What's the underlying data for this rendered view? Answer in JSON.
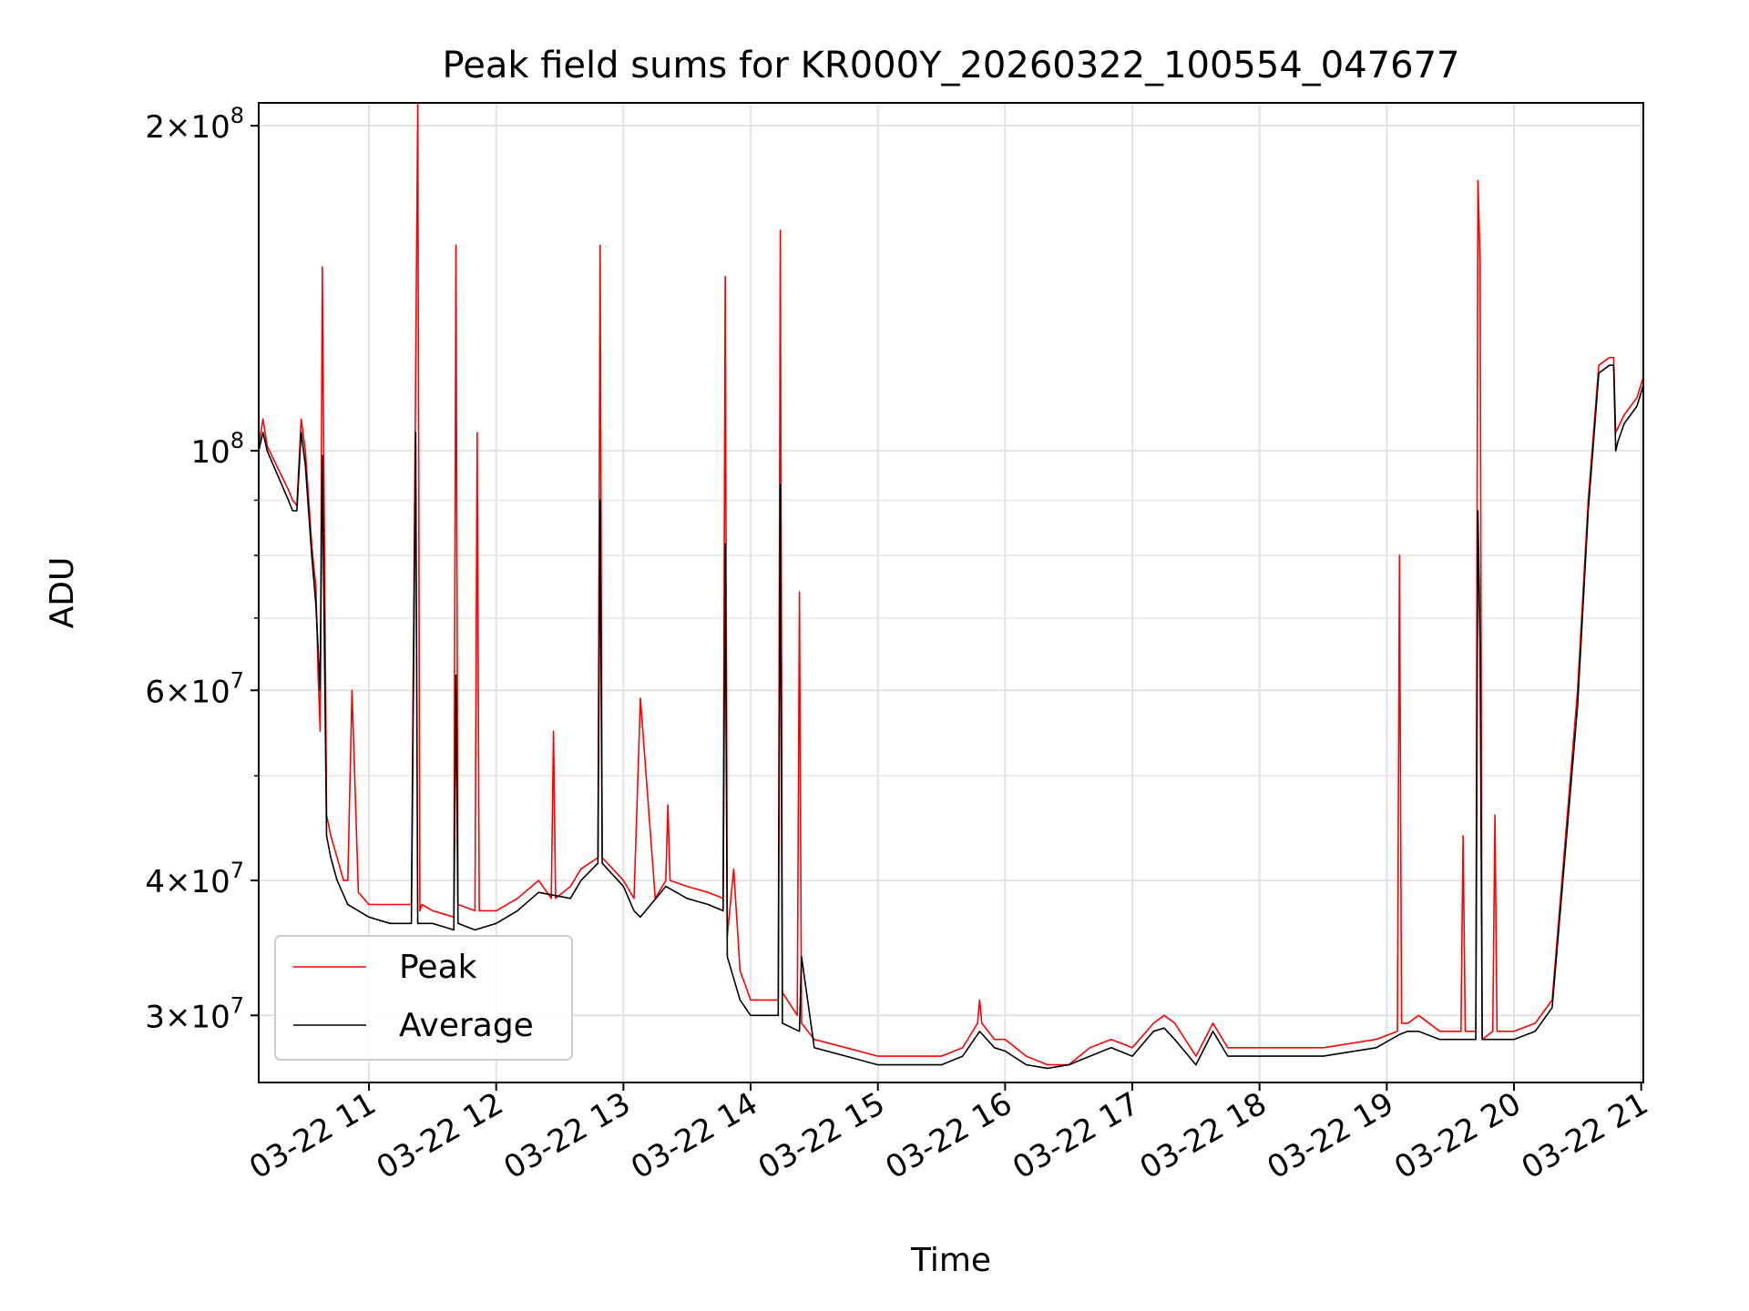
{
  "chart_data": {
    "type": "line",
    "title": "Peak field sums for KR000Y_20260322_100554_047677",
    "xlabel": "Time",
    "ylabel": "ADU",
    "y_scale": "log",
    "ylim": [
      26000000,
      210000000
    ],
    "xlim": [
      "03-22 10:08",
      "03-22 21:01"
    ],
    "grid": true,
    "legend": {
      "position": "lower-left",
      "entries": [
        "Peak",
        "Average"
      ]
    },
    "x_ticks": [
      {
        "value": "03-22 11:00",
        "label": "03-22 11"
      },
      {
        "value": "03-22 12:00",
        "label": "03-22 12"
      },
      {
        "value": "03-22 13:00",
        "label": "03-22 13"
      },
      {
        "value": "03-22 14:00",
        "label": "03-22 14"
      },
      {
        "value": "03-22 15:00",
        "label": "03-22 15"
      },
      {
        "value": "03-22 16:00",
        "label": "03-22 16"
      },
      {
        "value": "03-22 17:00",
        "label": "03-22 17"
      },
      {
        "value": "03-22 18:00",
        "label": "03-22 18"
      },
      {
        "value": "03-22 19:00",
        "label": "03-22 19"
      },
      {
        "value": "03-22 20:00",
        "label": "03-22 20"
      },
      {
        "value": "03-22 21:00",
        "label": "03-22 21"
      }
    ],
    "y_ticks": [
      {
        "value": 30000000,
        "base": "3",
        "exp": "7"
      },
      {
        "value": 40000000,
        "base": "4",
        "exp": "7"
      },
      {
        "value": 60000000,
        "base": "6",
        "exp": "7"
      },
      {
        "value": 100000000,
        "base": "",
        "exp": "8"
      },
      {
        "value": 200000000,
        "base": "2",
        "exp": "8"
      }
    ],
    "y_minor_ticks": [
      50000000,
      70000000,
      80000000,
      90000000
    ],
    "series": [
      {
        "name": "Peak",
        "color": "#ff0000",
        "x": [
          "03-22 10:08",
          "03-22 10:10",
          "03-22 10:12",
          "03-22 10:22",
          "03-22 10:24",
          "03-22 10:26",
          "03-22 10:28",
          "03-22 10:30",
          "03-22 10:33",
          "03-22 10:34",
          "03-22 10:35",
          "03-22 10:36",
          "03-22 10:37",
          "03-22 10:38",
          "03-22 10:40",
          "03-22 10:42",
          "03-22 10:45",
          "03-22 10:48",
          "03-22 10:50",
          "03-22 10:52",
          "03-22 10:55",
          "03-22 11:00",
          "03-22 11:06",
          "03-22 11:10",
          "03-22 11:20",
          "03-22 11:22",
          "03-22 11:23",
          "03-22 11:24",
          "03-22 11:25",
          "03-22 11:30",
          "03-22 11:40",
          "03-22 11:41",
          "03-22 11:42",
          "03-22 11:50",
          "03-22 11:51",
          "03-22 11:52",
          "03-22 12:00",
          "03-22 12:10",
          "03-22 12:20",
          "03-22 12:26",
          "03-22 12:27",
          "03-22 12:28",
          "03-22 12:35",
          "03-22 12:40",
          "03-22 12:48",
          "03-22 12:49",
          "03-22 12:50",
          "03-22 13:00",
          "03-22 13:05",
          "03-22 13:08",
          "03-22 13:15",
          "03-22 13:20",
          "03-22 13:21",
          "03-22 13:22",
          "03-22 13:30",
          "03-22 13:40",
          "03-22 13:47",
          "03-22 13:48",
          "03-22 13:49",
          "03-22 13:52",
          "03-22 13:55",
          "03-22 14:00",
          "03-22 14:13",
          "03-22 14:14",
          "03-22 14:15",
          "03-22 14:22",
          "03-22 14:23",
          "03-22 14:24",
          "03-22 14:30",
          "03-22 14:45",
          "03-22 15:00",
          "03-22 15:15",
          "03-22 15:30",
          "03-22 15:40",
          "03-22 15:47",
          "03-22 15:48",
          "03-22 15:49",
          "03-22 15:55",
          "03-22 16:00",
          "03-22 16:10",
          "03-22 16:20",
          "03-22 16:30",
          "03-22 16:40",
          "03-22 16:50",
          "03-22 17:00",
          "03-22 17:10",
          "03-22 17:15",
          "03-22 17:20",
          "03-22 17:30",
          "03-22 17:38",
          "03-22 17:45",
          "03-22 17:50",
          "03-22 18:00",
          "03-22 18:30",
          "03-22 18:55",
          "03-22 19:05",
          "03-22 19:06",
          "03-22 19:07",
          "03-22 19:10",
          "03-22 19:15",
          "03-22 19:25",
          "03-22 19:35",
          "03-22 19:36",
          "03-22 19:37",
          "03-22 19:42",
          "03-22 19:43",
          "03-22 19:44",
          "03-22 19:45",
          "03-22 19:50",
          "03-22 19:51",
          "03-22 19:52",
          "03-22 19:55",
          "03-22 20:00",
          "03-22 20:10",
          "03-22 20:18",
          "03-22 20:30",
          "03-22 20:35",
          "03-22 20:40",
          "03-22 20:45",
          "03-22 20:47",
          "03-22 20:48",
          "03-22 20:49",
          "03-22 20:52",
          "03-22 20:58",
          "03-22 21:01"
        ],
        "y": [
          101000000,
          107000000,
          101000000,
          92000000,
          90000000,
          89000000,
          107000000,
          100000000,
          82000000,
          78000000,
          75000000,
          62000000,
          55000000,
          148000000,
          46000000,
          44000000,
          42000000,
          40000000,
          40000000,
          60000000,
          39000000,
          38000000,
          38000000,
          38000000,
          38000000,
          118000000,
          210000000,
          37500000,
          38000000,
          37500000,
          37000000,
          155000000,
          38000000,
          37500000,
          104000000,
          37500000,
          37500000,
          38500000,
          40000000,
          38500000,
          55000000,
          38500000,
          39500000,
          41000000,
          42000000,
          155000000,
          42000000,
          40000000,
          38500000,
          59000000,
          38500000,
          40000000,
          47000000,
          40000000,
          39500000,
          39000000,
          38500000,
          145000000,
          35500000,
          41000000,
          33000000,
          31000000,
          31000000,
          160000000,
          31500000,
          30000000,
          74000000,
          29500000,
          28500000,
          28000000,
          27500000,
          27500000,
          27500000,
          28000000,
          29500000,
          31000000,
          29500000,
          28500000,
          28500000,
          27500000,
          27000000,
          27000000,
          28000000,
          28500000,
          28000000,
          29500000,
          30000000,
          29500000,
          27500000,
          29500000,
          28000000,
          28000000,
          28000000,
          28000000,
          28500000,
          29000000,
          80000000,
          29500000,
          29500000,
          30000000,
          29000000,
          29000000,
          44000000,
          29000000,
          29000000,
          178000000,
          150000000,
          28500000,
          29000000,
          46000000,
          29000000,
          29000000,
          29000000,
          29500000,
          31000000,
          60000000,
          90000000,
          120000000,
          122000000,
          122000000,
          104000000,
          105000000,
          108000000,
          112000000,
          117000000
        ]
      },
      {
        "name": "Average",
        "color": "#000000",
        "x": [
          "03-22 10:08",
          "03-22 10:10",
          "03-22 10:12",
          "03-22 10:22",
          "03-22 10:24",
          "03-22 10:26",
          "03-22 10:28",
          "03-22 10:30",
          "03-22 10:33",
          "03-22 10:35",
          "03-22 10:37",
          "03-22 10:38",
          "03-22 10:40",
          "03-22 10:42",
          "03-22 10:45",
          "03-22 10:50",
          "03-22 10:55",
          "03-22 11:00",
          "03-22 11:10",
          "03-22 11:20",
          "03-22 11:22",
          "03-22 11:23",
          "03-22 11:24",
          "03-22 11:30",
          "03-22 11:40",
          "03-22 11:41",
          "03-22 11:42",
          "03-22 11:50",
          "03-22 12:00",
          "03-22 12:10",
          "03-22 12:20",
          "03-22 12:35",
          "03-22 12:40",
          "03-22 12:48",
          "03-22 12:49",
          "03-22 12:50",
          "03-22 13:00",
          "03-22 13:05",
          "03-22 13:08",
          "03-22 13:20",
          "03-22 13:30",
          "03-22 13:40",
          "03-22 13:47",
          "03-22 13:48",
          "03-22 13:49",
          "03-22 13:55",
          "03-22 14:00",
          "03-22 14:13",
          "03-22 14:14",
          "03-22 14:15",
          "03-22 14:23",
          "03-22 14:24",
          "03-22 14:30",
          "03-22 14:45",
          "03-22 15:00",
          "03-22 15:15",
          "03-22 15:30",
          "03-22 15:40",
          "03-22 15:48",
          "03-22 15:55",
          "03-22 16:00",
          "03-22 16:10",
          "03-22 16:20",
          "03-22 16:30",
          "03-22 16:40",
          "03-22 16:50",
          "03-22 17:00",
          "03-22 17:10",
          "03-22 17:15",
          "03-22 17:20",
          "03-22 17:30",
          "03-22 17:38",
          "03-22 17:45",
          "03-22 17:50",
          "03-22 18:00",
          "03-22 18:30",
          "03-22 18:55",
          "03-22 19:06",
          "03-22 19:10",
          "03-22 19:15",
          "03-22 19:25",
          "03-22 19:36",
          "03-22 19:42",
          "03-22 19:43",
          "03-22 19:44",
          "03-22 19:45",
          "03-22 19:51",
          "03-22 19:52",
          "03-22 20:00",
          "03-22 20:10",
          "03-22 20:18",
          "03-22 20:30",
          "03-22 20:35",
          "03-22 20:40",
          "03-22 20:45",
          "03-22 20:47",
          "03-22 20:48",
          "03-22 20:49",
          "03-22 20:52",
          "03-22 20:58",
          "03-22 21:01"
        ],
        "y": [
          100000000,
          104000000,
          100000000,
          90000000,
          88000000,
          88000000,
          104000000,
          97000000,
          80000000,
          72000000,
          60000000,
          99000000,
          44000000,
          42000000,
          40000000,
          38000000,
          37500000,
          37000000,
          36500000,
          36500000,
          104000000,
          36500000,
          36500000,
          36500000,
          36000000,
          62000000,
          36500000,
          36000000,
          36500000,
          37500000,
          39000000,
          38500000,
          40000000,
          41500000,
          90000000,
          41500000,
          39500000,
          37500000,
          37000000,
          39500000,
          38500000,
          38000000,
          37500000,
          82000000,
          34000000,
          31000000,
          30000000,
          30000000,
          93000000,
          29500000,
          29000000,
          34000000,
          28000000,
          27500000,
          27000000,
          27000000,
          27000000,
          27500000,
          29000000,
          28000000,
          27800000,
          27000000,
          26800000,
          27000000,
          27500000,
          28000000,
          27500000,
          29000000,
          29200000,
          28500000,
          27000000,
          29000000,
          27500000,
          27500000,
          27500000,
          27500000,
          28000000,
          28800000,
          29000000,
          29000000,
          28500000,
          28500000,
          28500000,
          88000000,
          66000000,
          28500000,
          28500000,
          28500000,
          28500000,
          29000000,
          30500000,
          58000000,
          88000000,
          118000000,
          120000000,
          120000000,
          100000000,
          102000000,
          106000000,
          110000000,
          115000000
        ]
      }
    ]
  }
}
